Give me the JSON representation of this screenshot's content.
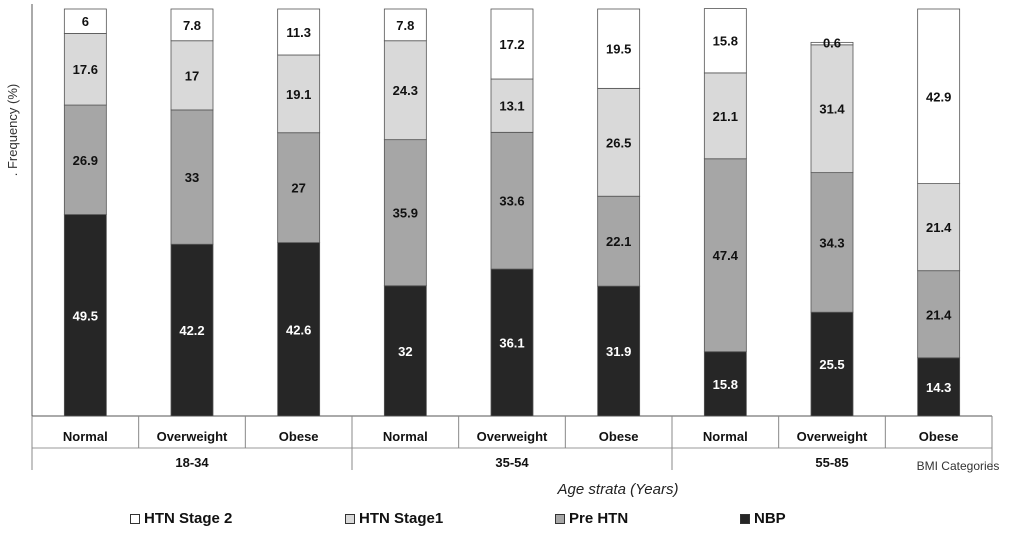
{
  "chart_data": {
    "type": "bar",
    "stacked": true,
    "ylabel": ". Frequency (%)",
    "xlabel": "Age strata (Years)",
    "category_axis_label": "BMI Categories",
    "ylim": [
      0,
      100
    ],
    "grid": false,
    "legend_position": "bottom",
    "groups": [
      {
        "label": "18-34",
        "categories": [
          "Normal",
          "Overweight",
          "Obese"
        ]
      },
      {
        "label": "35-54",
        "categories": [
          "Normal",
          "Overweight",
          "Obese"
        ]
      },
      {
        "label": "55-85",
        "categories": [
          "Normal",
          "Overweight",
          "Obese"
        ]
      }
    ],
    "categories": [
      "Normal",
      "Overweight",
      "Obese",
      "Normal",
      "Overweight",
      "Obese",
      "Normal",
      "Overweight",
      "Obese"
    ],
    "series": [
      {
        "name": "NBP",
        "color": "#262626",
        "label_color": "#ffffff",
        "values": [
          49.5,
          42.2,
          42.6,
          32,
          36.1,
          31.9,
          15.8,
          25.5,
          14.3
        ],
        "labels": [
          "49.5",
          "42.2",
          "42.6",
          "32",
          "36.1",
          "31.9",
          "15.8",
          "25.5",
          "14.3"
        ]
      },
      {
        "name": "Pre HTN",
        "color": "#a6a6a6",
        "label_color": "#111111",
        "values": [
          26.9,
          33,
          27,
          35.9,
          33.6,
          22.1,
          47.4,
          34.3,
          21.4
        ],
        "labels": [
          "26.9",
          "33",
          "27",
          "35.9",
          "33.6",
          "22.1",
          "47.4",
          "34.3",
          "21.4"
        ]
      },
      {
        "name": "HTN Stage1",
        "color": "#d9d9d9",
        "label_color": "#111111",
        "values": [
          17.6,
          17,
          19.1,
          24.3,
          13.1,
          26.5,
          21.1,
          31.4,
          21.4
        ],
        "labels": [
          "17.6",
          "17",
          "19.1",
          "24.3",
          "13.1",
          "26.5",
          "21.1",
          "31.4",
          "21.4"
        ]
      },
      {
        "name": "HTN Stage 2",
        "color": "#ffffff",
        "label_color": "#111111",
        "values": [
          6,
          7.8,
          11.3,
          7.8,
          17.2,
          19.5,
          15.8,
          0.6,
          42.9
        ],
        "labels": [
          "6",
          "7.8",
          "11.3",
          "7.8",
          "17.2",
          "19.5",
          "15.8",
          "0.6",
          "42.9"
        ]
      }
    ],
    "legend": [
      {
        "name": "HTN Stage 2",
        "color": "#ffffff"
      },
      {
        "name": "HTN Stage1",
        "color": "#d9d9d9"
      },
      {
        "name": "Pre HTN",
        "color": "#a6a6a6"
      },
      {
        "name": "NBP",
        "color": "#262626"
      }
    ]
  }
}
